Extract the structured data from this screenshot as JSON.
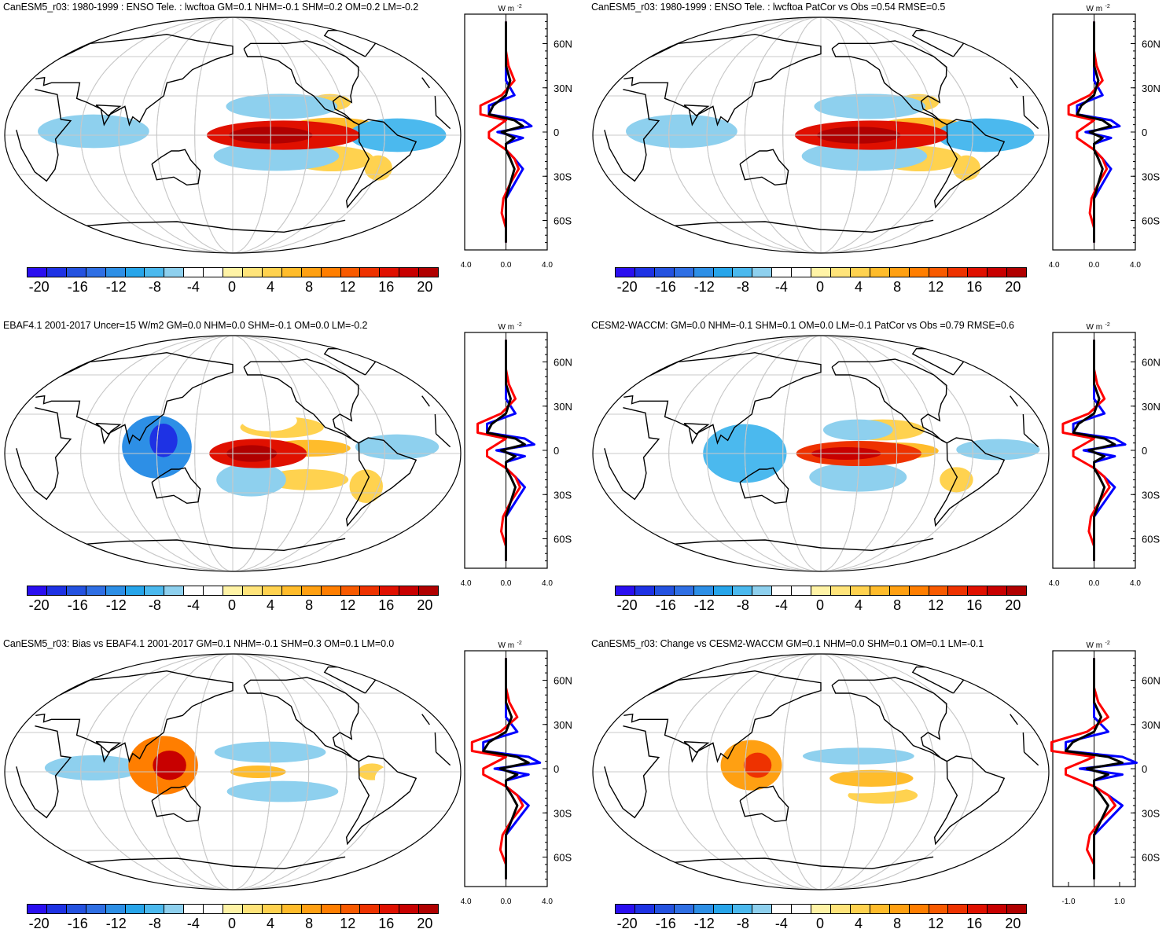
{
  "panels": [
    {
      "id": "p1",
      "title": "CanESM5_r03: 1980-1999 : ENSO Tele. : lwcftoa GM=0.1 NHM=-0.1 SHM=0.2 OM=0.2 LM=-0.2",
      "xticks": [
        "-4.0",
        "0.0",
        "4.0"
      ],
      "field": [
        {
          "lon": -140,
          "lat": 0,
          "rx": 55,
          "ry": 7,
          "v": 16
        },
        {
          "lon": -150,
          "lat": 0,
          "rx": 30,
          "ry": 4,
          "v": 20
        },
        {
          "lon": -100,
          "lat": 7,
          "rx": 30,
          "ry": 4,
          "v": 6
        },
        {
          "lon": -100,
          "lat": -18,
          "rx": 30,
          "ry": 6,
          "v": 4
        },
        {
          "lon": -100,
          "lat": 25,
          "rx": 15,
          "ry": 4,
          "v": 4
        },
        {
          "lon": -60,
          "lat": -25,
          "rx": 10,
          "ry": 6,
          "v": 4
        },
        {
          "lon": -140,
          "lat": 22,
          "rx": 40,
          "ry": 6,
          "v": -6
        },
        {
          "lon": -145,
          "lat": -16,
          "rx": 45,
          "ry": 7,
          "v": -7
        },
        {
          "lon": 70,
          "lat": 3,
          "rx": 40,
          "ry": 8,
          "v": -7
        },
        {
          "lon": -50,
          "lat": 0,
          "rx": 35,
          "ry": 8,
          "v": -8
        },
        {
          "lon": 10,
          "lat": 5,
          "rx": 15,
          "ry": 5,
          "v": -4
        }
      ]
    },
    {
      "id": "p2",
      "title": "CanESM5_r03: 1980-1999 : ENSO Tele. : lwcftoa PatCor vs Obs =0.54 RMSE=0.5",
      "xticks": [
        "-4.0",
        "0.0",
        "4.0"
      ],
      "field": [
        {
          "lon": -140,
          "lat": 0,
          "rx": 55,
          "ry": 7,
          "v": 16
        },
        {
          "lon": -150,
          "lat": 0,
          "rx": 30,
          "ry": 4,
          "v": 20
        },
        {
          "lon": -100,
          "lat": 7,
          "rx": 30,
          "ry": 4,
          "v": 6
        },
        {
          "lon": -100,
          "lat": -18,
          "rx": 30,
          "ry": 6,
          "v": 4
        },
        {
          "lon": -100,
          "lat": 25,
          "rx": 15,
          "ry": 4,
          "v": 4
        },
        {
          "lon": -60,
          "lat": -25,
          "rx": 10,
          "ry": 6,
          "v": 4
        },
        {
          "lon": -140,
          "lat": 22,
          "rx": 40,
          "ry": 6,
          "v": -6
        },
        {
          "lon": -145,
          "lat": -16,
          "rx": 45,
          "ry": 7,
          "v": -7
        },
        {
          "lon": 70,
          "lat": 3,
          "rx": 40,
          "ry": 8,
          "v": -7
        },
        {
          "lon": -50,
          "lat": 0,
          "rx": 35,
          "ry": 8,
          "v": -8
        },
        {
          "lon": 10,
          "lat": 5,
          "rx": 15,
          "ry": 5,
          "v": -4
        }
      ]
    },
    {
      "id": "p3",
      "title": "EBAF4.1 2001-2017 Uncer=15 W/m2 GM=0.0 NHM=0.0 SHM=-0.1 OM=0.0 LM=-0.2",
      "xticks": [
        "-4.0",
        "0.0",
        "4.0"
      ],
      "field": [
        {
          "lon": -160,
          "lat": 0,
          "rx": 35,
          "ry": 7,
          "v": 15
        },
        {
          "lon": -165,
          "lat": 0,
          "rx": 18,
          "ry": 4,
          "v": 20
        },
        {
          "lon": -120,
          "lat": 4,
          "rx": 30,
          "ry": 4,
          "v": 6
        },
        {
          "lon": -120,
          "lat": -20,
          "rx": 30,
          "ry": 5,
          "v": 4
        },
        {
          "lon": -140,
          "lat": 20,
          "rx": 30,
          "ry": 5,
          "v": 4
        },
        {
          "lon": -70,
          "lat": -25,
          "rx": 12,
          "ry": 8,
          "v": 4
        },
        {
          "lon": 120,
          "lat": 5,
          "rx": 25,
          "ry": 15,
          "v": -12
        },
        {
          "lon": 125,
          "lat": 10,
          "rx": 10,
          "ry": 8,
          "v": -18
        },
        {
          "lon": -165,
          "lat": -20,
          "rx": 25,
          "ry": 8,
          "v": -7
        },
        {
          "lon": -150,
          "lat": 25,
          "rx": 20,
          "ry": 5,
          "v": -5
        },
        {
          "lon": -50,
          "lat": 5,
          "rx": 30,
          "ry": 6,
          "v": -7
        },
        {
          "lon": 10,
          "lat": 5,
          "rx": 12,
          "ry": 4,
          "v": -5
        }
      ]
    },
    {
      "id": "p4",
      "title": "CESM2-WACCM: GM=0.0 NHM=-0.1 SHM=0.1 OM=0.0 LM=-0.1 PatCor vs Obs =0.79 RMSE=0.6",
      "xticks": [
        "-4.0",
        "0.0",
        "4.0"
      ],
      "field": [
        {
          "lon": -150,
          "lat": 0,
          "rx": 45,
          "ry": 6,
          "v": 14
        },
        {
          "lon": -160,
          "lat": 0,
          "rx": 25,
          "ry": 3,
          "v": 18
        },
        {
          "lon": -120,
          "lat": 2,
          "rx": 30,
          "ry": 4,
          "v": 6
        },
        {
          "lon": -70,
          "lat": -20,
          "rx": 12,
          "ry": 6,
          "v": 4
        },
        {
          "lon": -130,
          "lat": 18,
          "rx": 30,
          "ry": 5,
          "v": 4
        },
        {
          "lon": 120,
          "lat": 0,
          "rx": 30,
          "ry": 14,
          "v": -8
        },
        {
          "lon": -150,
          "lat": -18,
          "rx": 35,
          "ry": 7,
          "v": -6
        },
        {
          "lon": -150,
          "lat": 18,
          "rx": 25,
          "ry": 5,
          "v": -6
        },
        {
          "lon": -40,
          "lat": 3,
          "rx": 30,
          "ry": 5,
          "v": -6
        }
      ]
    },
    {
      "id": "p5",
      "title": "CanESM5_r03: Bias vs EBAF4.1 2001-2017 GM=0.1 NHM=-0.1 SHM=0.3 OM=0.1 LM=0.0",
      "xticks": [
        "-4.0",
        "0.0",
        "4.0"
      ],
      "field": [
        {
          "lon": 125,
          "lat": 5,
          "rx": 25,
          "ry": 14,
          "v": 10
        },
        {
          "lon": 130,
          "lat": 5,
          "rx": 12,
          "ry": 7,
          "v": 18
        },
        {
          "lon": -160,
          "lat": 0,
          "rx": 20,
          "ry": 3,
          "v": 6
        },
        {
          "lon": -70,
          "lat": 0,
          "rx": 10,
          "ry": 4,
          "v": 4
        },
        {
          "lon": -150,
          "lat": 15,
          "rx": 40,
          "ry": 5,
          "v": -6
        },
        {
          "lon": -140,
          "lat": -15,
          "rx": 40,
          "ry": 5,
          "v": -6
        },
        {
          "lon": 70,
          "lat": 3,
          "rx": 35,
          "ry": 6,
          "v": -6
        },
        {
          "lon": -40,
          "lat": -5,
          "rx": 25,
          "ry": 8,
          "v": -5
        }
      ]
    },
    {
      "id": "p6",
      "title": "CanESM5_r03: Change vs CESM2-WACCM GM=0.1 NHM=0.0 SHM=0.1 OM=0.1 LM=-0.1",
      "xticks": [
        "-1.0",
        "1.0"
      ],
      "field": [
        {
          "lon": 125,
          "lat": 5,
          "rx": 22,
          "ry": 12,
          "v": 8
        },
        {
          "lon": 130,
          "lat": 5,
          "rx": 10,
          "ry": 6,
          "v": 14
        },
        {
          "lon": -140,
          "lat": -5,
          "rx": 30,
          "ry": 4,
          "v": 6
        },
        {
          "lon": -130,
          "lat": -18,
          "rx": 25,
          "ry": 4,
          "v": 4
        },
        {
          "lon": -150,
          "lat": 12,
          "rx": 40,
          "ry": 4,
          "v": -6
        },
        {
          "lon": -150,
          "lat": -10,
          "rx": 40,
          "ry": 4,
          "v": -5
        },
        {
          "lon": 70,
          "lat": 3,
          "rx": 30,
          "ry": 5,
          "v": -5
        },
        {
          "lon": -40,
          "lat": -5,
          "rx": 25,
          "ry": 8,
          "v": -5
        }
      ]
    }
  ],
  "profile_ylabels": [
    "60N",
    "30N",
    "0",
    "30S",
    "60S"
  ],
  "profile_unit": "W m",
  "colorbar": {
    "labels": [
      "-20",
      "-16",
      "-12",
      "-8",
      "-4",
      "0",
      "4",
      "8",
      "12",
      "16",
      "20"
    ],
    "colors": [
      "#2a0ff0",
      "#1e32e4",
      "#2452e0",
      "#2f6fe4",
      "#2d8fe6",
      "#27a5ea",
      "#4bb9ee",
      "#8ed0ee",
      "#ffffff",
      "#ffffff",
      "#fff3a6",
      "#ffe47a",
      "#ffd24f",
      "#ffbc2b",
      "#ffa012",
      "#ff7e00",
      "#f85a00",
      "#ee3200",
      "#e01000",
      "#c80000",
      "#b00000"
    ]
  }
}
